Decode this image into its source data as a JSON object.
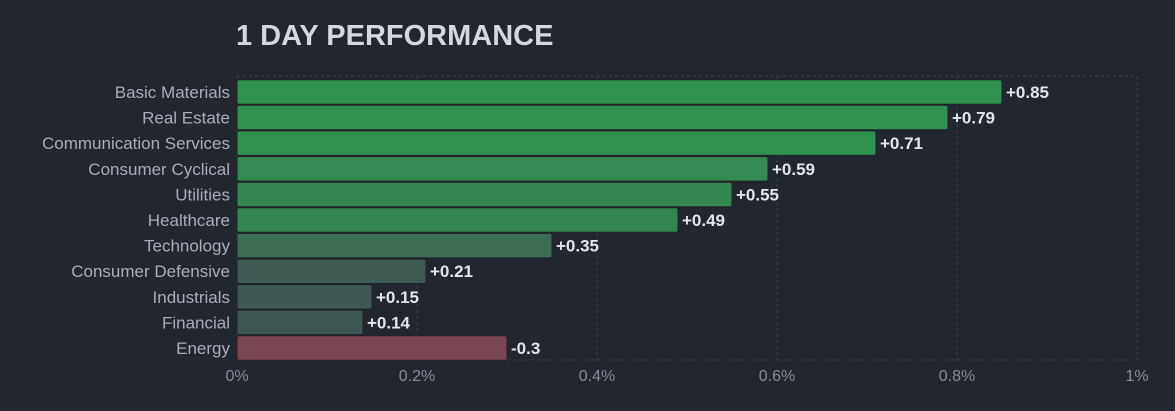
{
  "chart_data": {
    "type": "bar",
    "orientation": "horizontal",
    "title": "1 DAY PERFORMANCE",
    "categories": [
      "Basic Materials",
      "Real Estate",
      "Communication Services",
      "Consumer Cyclical",
      "Utilities",
      "Healthcare",
      "Technology",
      "Consumer Defensive",
      "Industrials",
      "Financial",
      "Energy"
    ],
    "values": [
      0.85,
      0.79,
      0.71,
      0.59,
      0.55,
      0.49,
      0.35,
      0.21,
      0.15,
      0.14,
      -0.3
    ],
    "value_labels": [
      "+0.85",
      "+0.79",
      "+0.71",
      "+0.59",
      "+0.55",
      "+0.49",
      "+0.35",
      "+0.21",
      "+0.15",
      "+0.14",
      "-0.3"
    ],
    "bar_colors": [
      "#30904f",
      "#30904f",
      "#30904f",
      "#348b51",
      "#348650",
      "#348650",
      "#3e6d55",
      "#3e5b53",
      "#3f5753",
      "#3f5753",
      "#7a4651"
    ],
    "xlim": [
      0,
      1
    ],
    "xticks": [
      0,
      0.2,
      0.4,
      0.6,
      0.8,
      1
    ],
    "xtick_labels": [
      "0%",
      "0.2%",
      "0.4%",
      "0.6%",
      "0.8%",
      "1%"
    ],
    "bar_length_uses_absolute_value": true,
    "grid": true,
    "legend": "none"
  }
}
